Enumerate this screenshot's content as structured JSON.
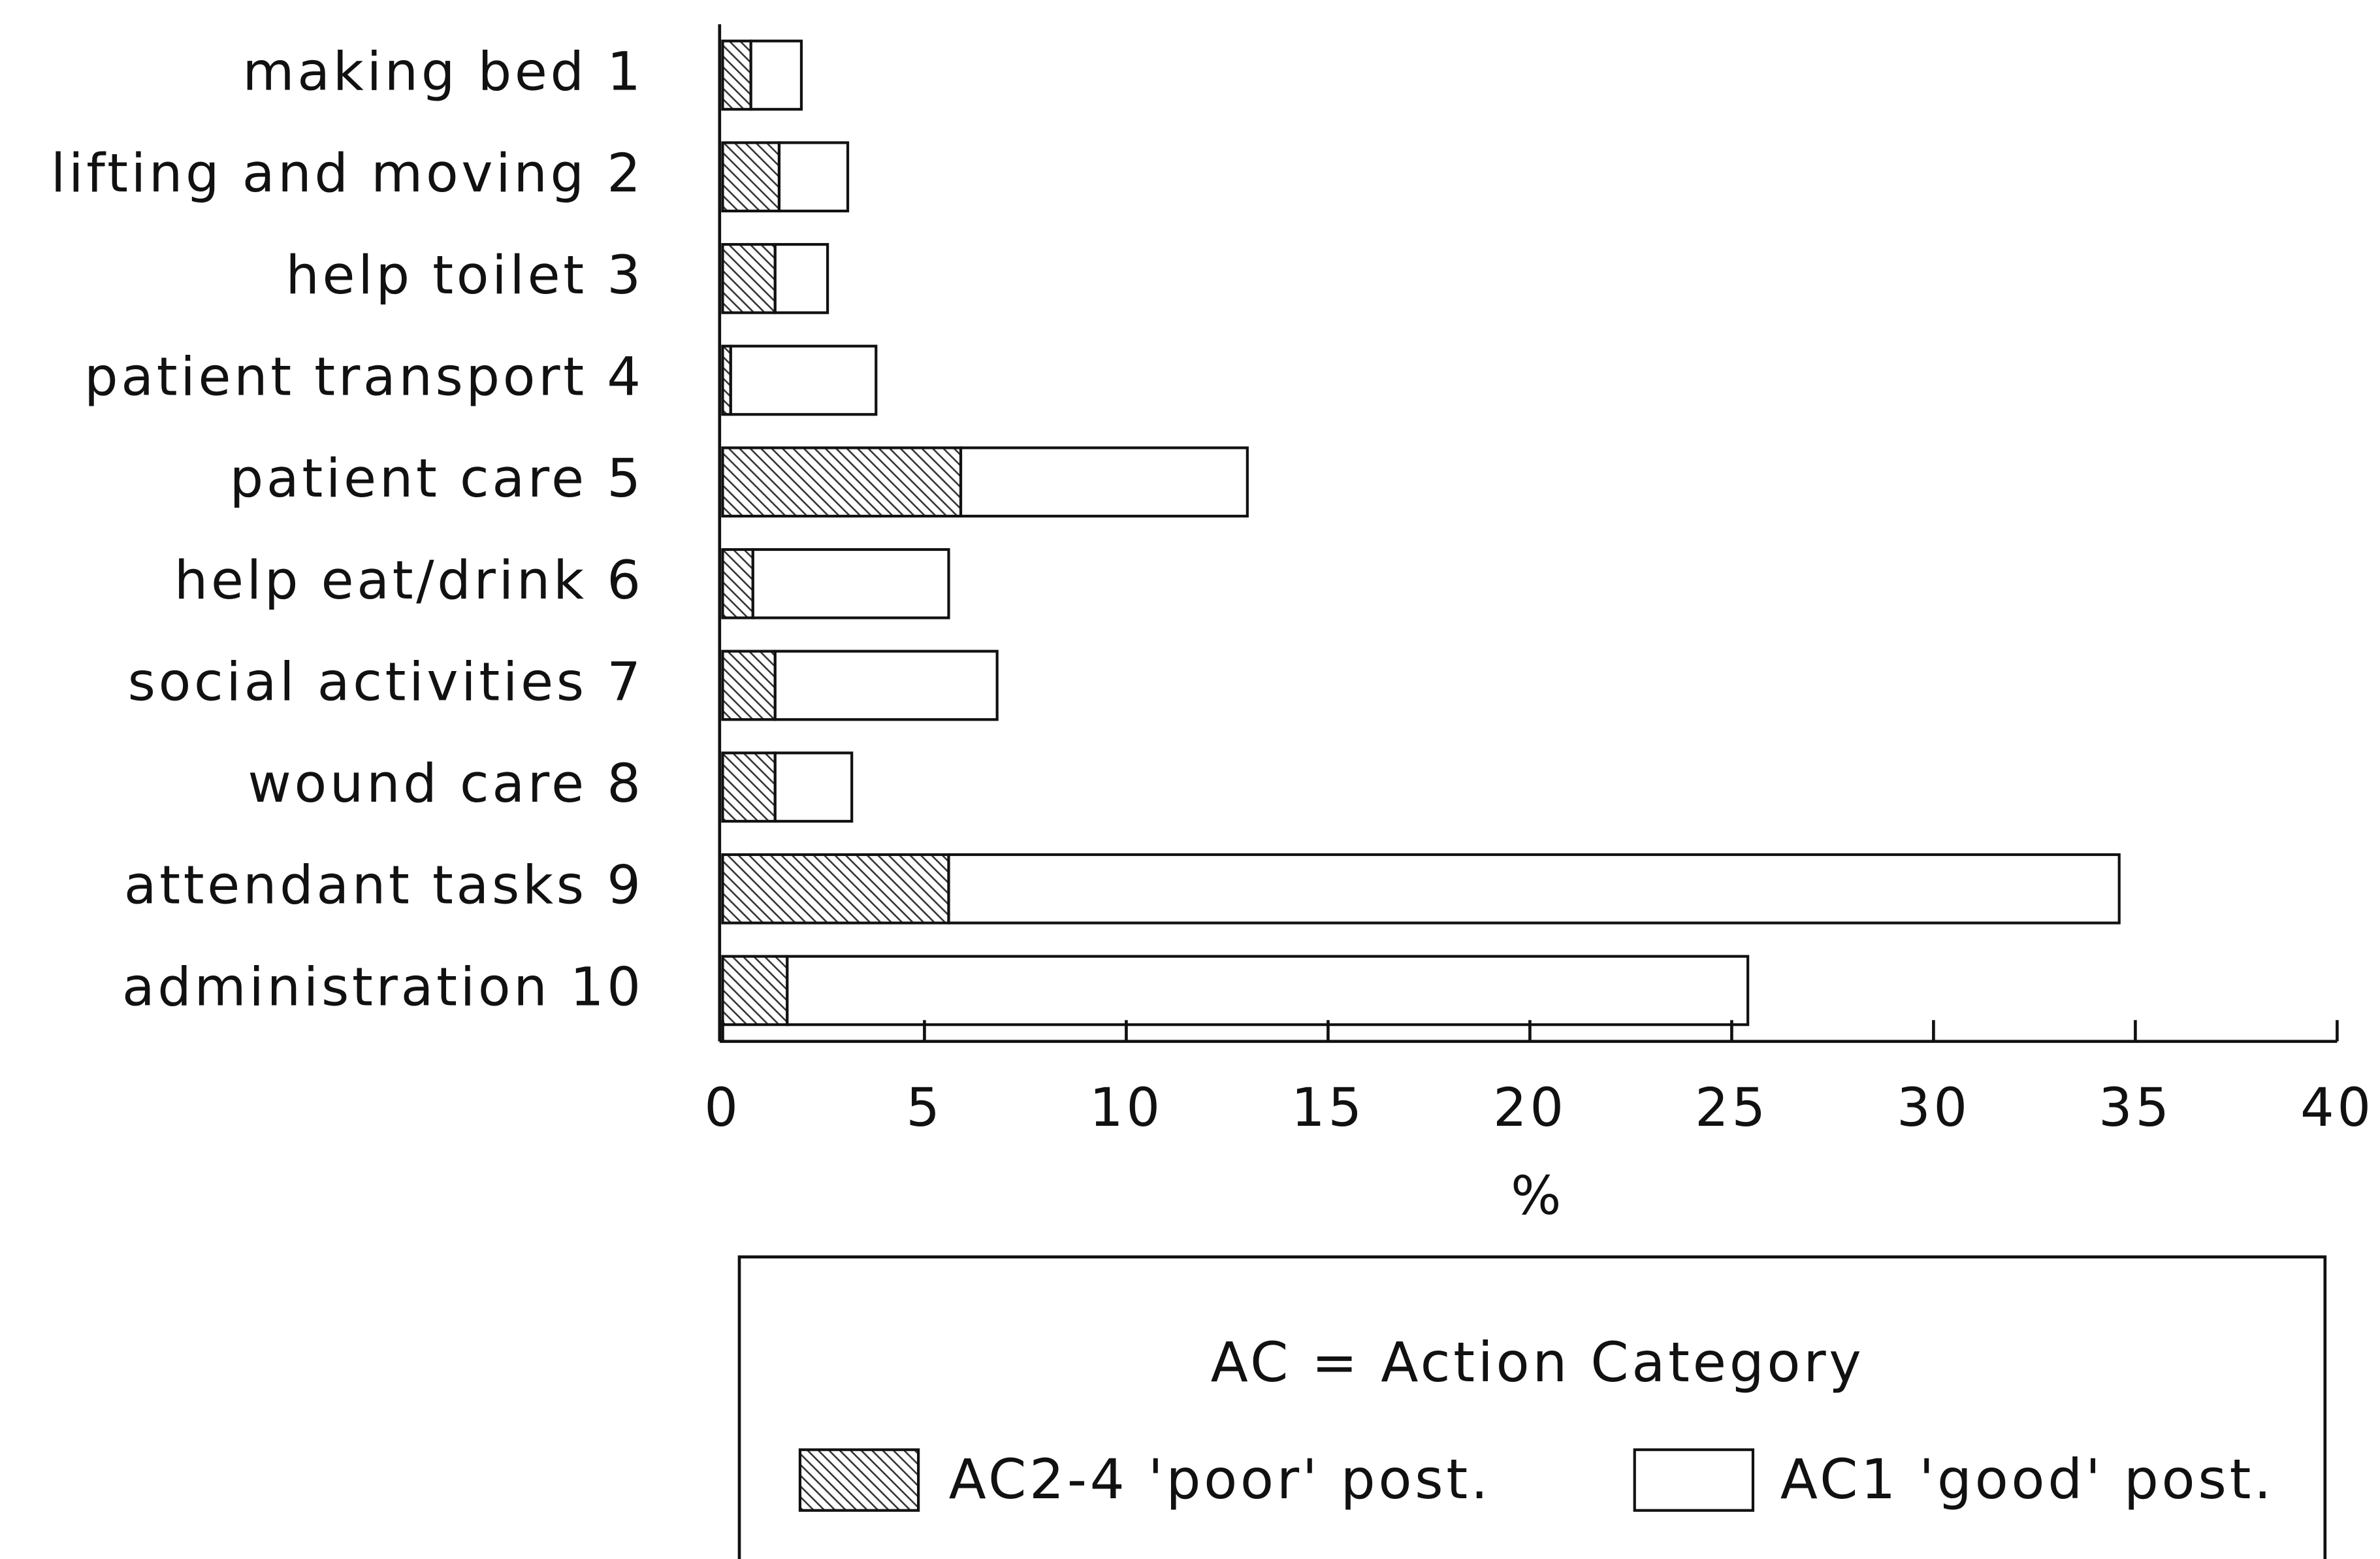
{
  "chart_data": {
    "type": "stacked_barh",
    "categories": [
      "making bed 1",
      "lifting and moving 2",
      "help toilet 3",
      "patient transport 4",
      "patient care 5",
      "help eat/drink 6",
      "social activities 7",
      "wound care 8",
      "attendant tasks 9",
      "administration 10"
    ],
    "series": [
      {
        "name": "AC2-4 'poor' post.",
        "color": "#333333",
        "pattern": "hatch",
        "values": [
          0.7,
          1.4,
          1.3,
          0.2,
          5.9,
          0.75,
          1.3,
          1.3,
          5.6,
          1.6
        ]
      },
      {
        "name": "AC1 'good' post.",
        "color": "#ffffff",
        "pattern": "none",
        "values": [
          1.25,
          1.7,
          1.3,
          3.6,
          7.1,
          4.85,
          5.5,
          1.9,
          29.0,
          23.8
        ]
      }
    ],
    "xlabel": "%",
    "xlim": [
      0,
      40
    ],
    "xticks": [
      0,
      5,
      10,
      15,
      20,
      25,
      30,
      35,
      40
    ],
    "legend_title": "AC = Action Category",
    "legend": "bottom"
  }
}
